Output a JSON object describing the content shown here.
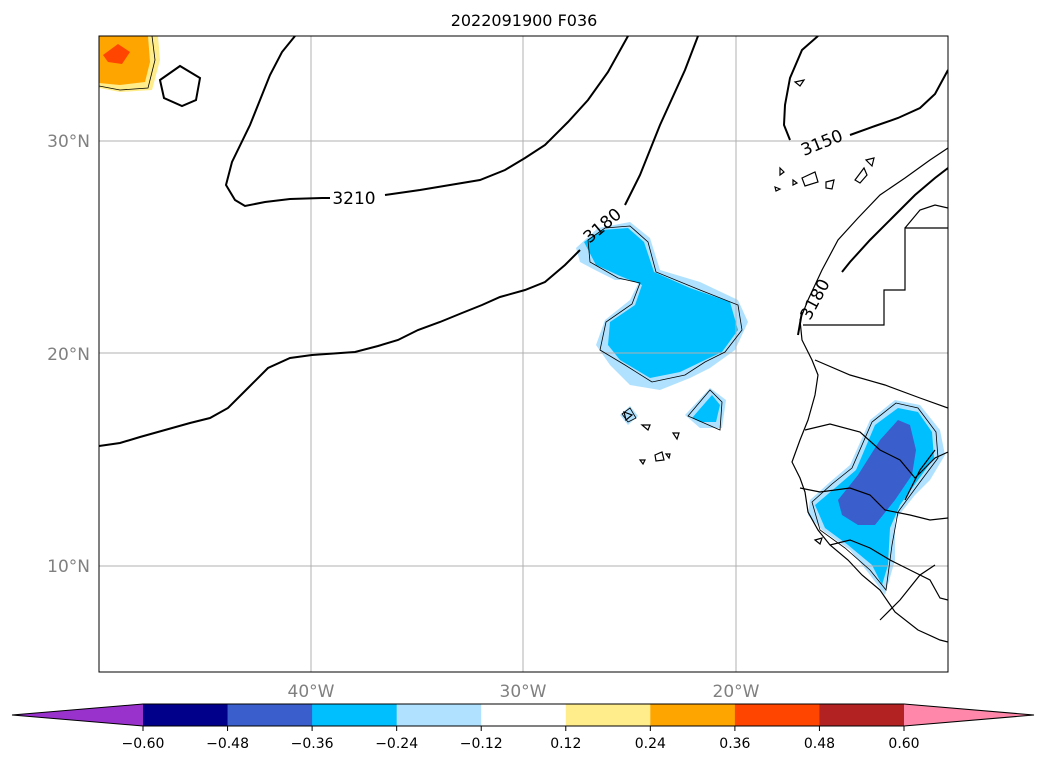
{
  "title": "2022091900 F036",
  "map": {
    "lat_labels": [
      "30°N",
      "20°N",
      "10°N"
    ],
    "lon_labels": [
      "40°W",
      "30°W",
      "20°W"
    ],
    "contour_labels": [
      "3210",
      "3180",
      "3180",
      "3150"
    ],
    "contour_levels": [
      3150,
      3180,
      3210
    ]
  },
  "colorbar": {
    "tick_labels": [
      "−0.60",
      "−0.48",
      "−0.36",
      "−0.24",
      "−0.12",
      "0.12",
      "0.24",
      "0.36",
      "0.48",
      "0.60"
    ],
    "colors": [
      "#9932cc",
      "#00008b",
      "#3a5fcd",
      "#00bfff",
      "#b0e2ff",
      "#ffffff",
      "#ffec8b",
      "#ffa500",
      "#ff4500",
      "#b22222",
      "#ff88aa"
    ],
    "extend": "both"
  }
}
